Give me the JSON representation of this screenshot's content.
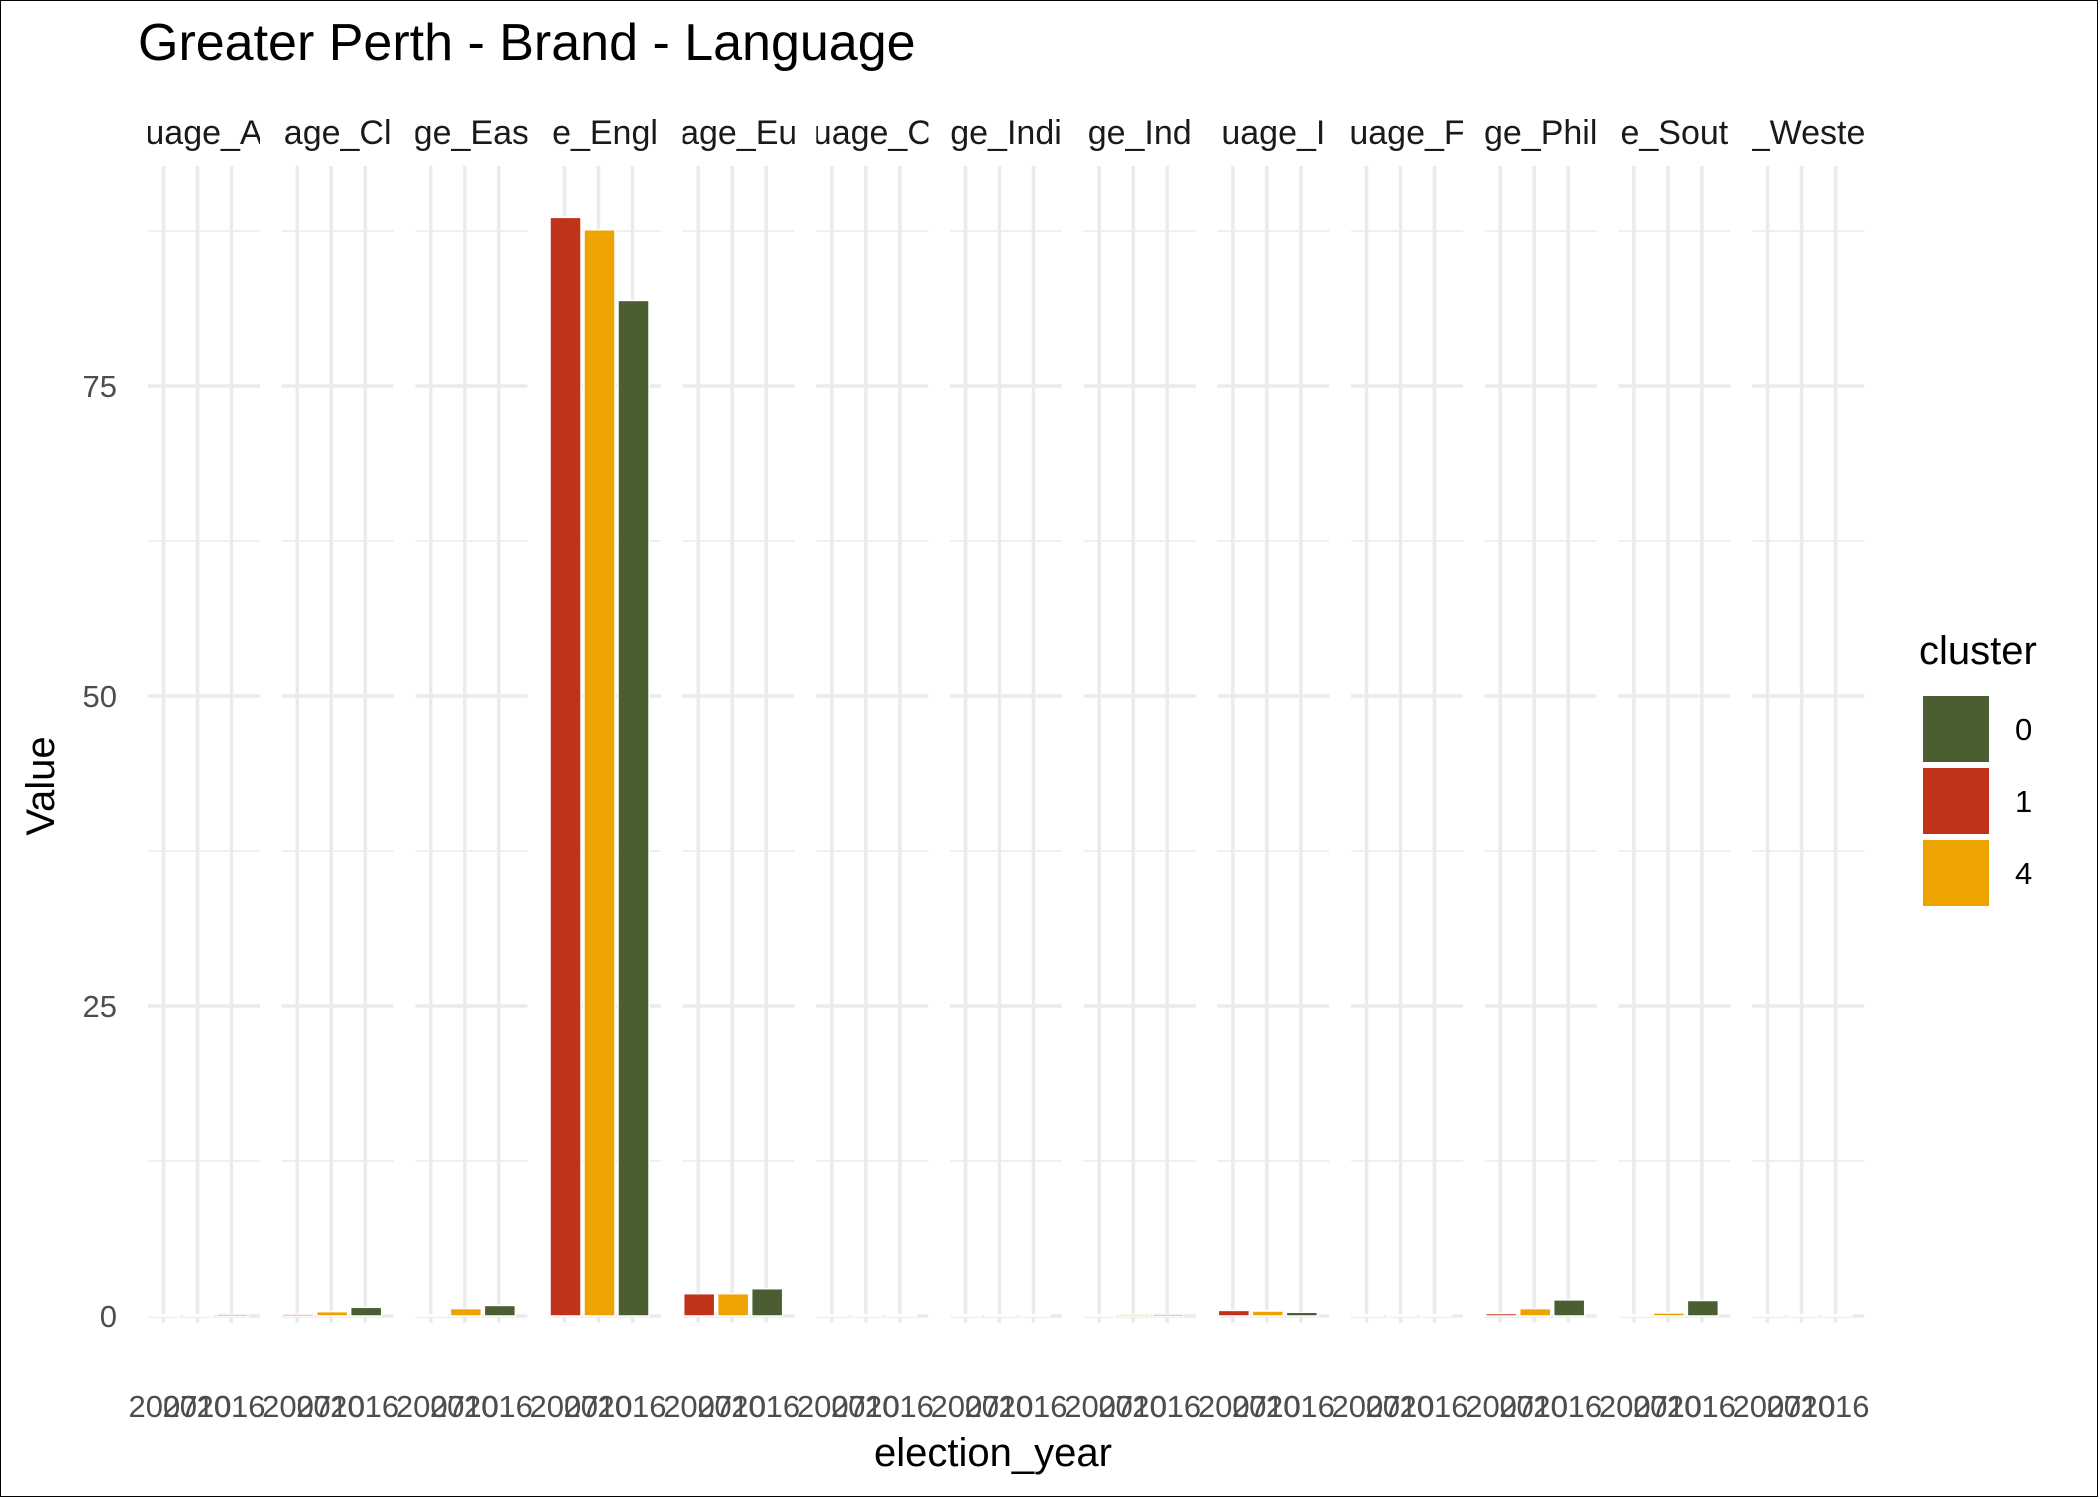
{
  "chart_data": {
    "type": "bar",
    "title": "Greater Perth - Brand - Language",
    "xlabel": "election_year",
    "ylabel": "Value",
    "ylim": [
      0,
      92
    ],
    "y_ticks": [
      0,
      25,
      50,
      75
    ],
    "grid": true,
    "legend": {
      "title": "cluster",
      "position": "right"
    },
    "x_tick_labels": [
      "2007",
      "2010",
      "2016"
    ],
    "facets": [
      {
        "label": "uage_A",
        "bars": [
          {
            "year": "2007",
            "cluster": "1",
            "value": 0.05
          },
          {
            "year": "2010",
            "cluster": "4",
            "value": 0.1
          },
          {
            "year": "2016",
            "cluster": "0",
            "value": 0.15
          }
        ]
      },
      {
        "label": "age_Cl",
        "bars": [
          {
            "year": "2007",
            "cluster": "1",
            "value": 0.15
          },
          {
            "year": "2010",
            "cluster": "4",
            "value": 0.35
          },
          {
            "year": "2016",
            "cluster": "0",
            "value": 0.7
          }
        ]
      },
      {
        "label": "ge_Eas",
        "bars": [
          {
            "year": "2007",
            "cluster": "1",
            "value": 0.1
          },
          {
            "year": "2010",
            "cluster": "4",
            "value": 0.6
          },
          {
            "year": "2016",
            "cluster": "0",
            "value": 0.85
          }
        ]
      },
      {
        "label": "e_Engl",
        "bars": [
          {
            "year": "2007",
            "cluster": "1",
            "value": 88.6
          },
          {
            "year": "2010",
            "cluster": "4",
            "value": 87.6
          },
          {
            "year": "2016",
            "cluster": "0",
            "value": 81.9
          }
        ]
      },
      {
        "label": "age_Eu",
        "bars": [
          {
            "year": "2007",
            "cluster": "1",
            "value": 1.8
          },
          {
            "year": "2010",
            "cluster": "4",
            "value": 1.8
          },
          {
            "year": "2016",
            "cluster": "0",
            "value": 2.2
          }
        ]
      },
      {
        "label": "uage_C",
        "bars": [
          {
            "year": "2007",
            "cluster": "1",
            "value": 0.05
          },
          {
            "year": "2010",
            "cluster": "4",
            "value": 0.05
          },
          {
            "year": "2016",
            "cluster": "0",
            "value": 0.03
          }
        ]
      },
      {
        "label": "ge_Indi",
        "bars": [
          {
            "year": "2007",
            "cluster": "1",
            "value": 0.03
          },
          {
            "year": "2010",
            "cluster": "4",
            "value": 0.03
          },
          {
            "year": "2016",
            "cluster": "0",
            "value": 0.02
          }
        ]
      },
      {
        "label": "ge_Ind",
        "bars": [
          {
            "year": "2007",
            "cluster": "1",
            "value": 0.1
          },
          {
            "year": "2010",
            "cluster": "4",
            "value": 0.15
          },
          {
            "year": "2016",
            "cluster": "0",
            "value": 0.15
          }
        ]
      },
      {
        "label": "uage_I",
        "bars": [
          {
            "year": "2007",
            "cluster": "1",
            "value": 0.45
          },
          {
            "year": "2010",
            "cluster": "4",
            "value": 0.4
          },
          {
            "year": "2016",
            "cluster": "0",
            "value": 0.3
          }
        ]
      },
      {
        "label": "uage_F",
        "bars": [
          {
            "year": "2007",
            "cluster": "1",
            "value": 0.02
          },
          {
            "year": "2010",
            "cluster": "4",
            "value": 0.05
          },
          {
            "year": "2016",
            "cluster": "0",
            "value": 0.05
          }
        ]
      },
      {
        "label": "ge_Phil",
        "bars": [
          {
            "year": "2007",
            "cluster": "1",
            "value": 0.2
          },
          {
            "year": "2010",
            "cluster": "4",
            "value": 0.6
          },
          {
            "year": "2016",
            "cluster": "0",
            "value": 1.3
          }
        ]
      },
      {
        "label": "e_Sout",
        "bars": [
          {
            "year": "2007",
            "cluster": "1",
            "value": 0.05
          },
          {
            "year": "2010",
            "cluster": "4",
            "value": 0.25
          },
          {
            "year": "2016",
            "cluster": "0",
            "value": 1.25
          }
        ]
      },
      {
        "label": "_Weste",
        "bars": [
          {
            "year": "2007",
            "cluster": "1",
            "value": 0.05
          },
          {
            "year": "2010",
            "cluster": "4",
            "value": 0.05
          },
          {
            "year": "2016",
            "cluster": "0",
            "value": 0.05
          }
        ]
      }
    ],
    "series": [
      {
        "name": "0",
        "color": "#4a5e31"
      },
      {
        "name": "1",
        "color": "#c03219"
      },
      {
        "name": "4",
        "color": "#eea400"
      }
    ]
  }
}
